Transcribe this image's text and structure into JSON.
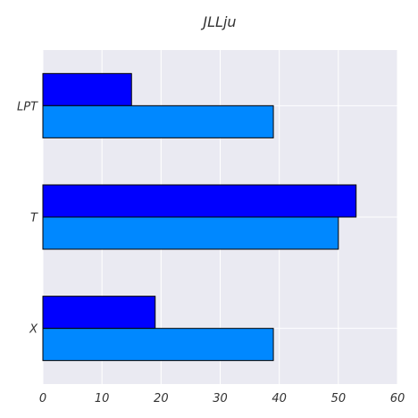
{
  "chart_data": {
    "type": "bar",
    "orientation": "horizontal",
    "title": "JLLju",
    "xlabel": "",
    "ylabel": "",
    "categories": [
      "LPT",
      "T",
      "X"
    ],
    "series": [
      {
        "values": [
          15,
          53,
          19
        ],
        "color": "#0000ff"
      },
      {
        "values": [
          39,
          50,
          39
        ],
        "color": "#0088ff"
      }
    ],
    "xlim": [
      0,
      60
    ],
    "xticks": [
      "0",
      "10",
      "20",
      "30",
      "40",
      "50",
      "60"
    ],
    "xtick_values": [
      0,
      10,
      20,
      30,
      40,
      50,
      60
    ],
    "grid": true,
    "legend": "none",
    "background_color": "#eaeaf2",
    "grid_color": "#ffffff",
    "edge_color": "#000000"
  }
}
